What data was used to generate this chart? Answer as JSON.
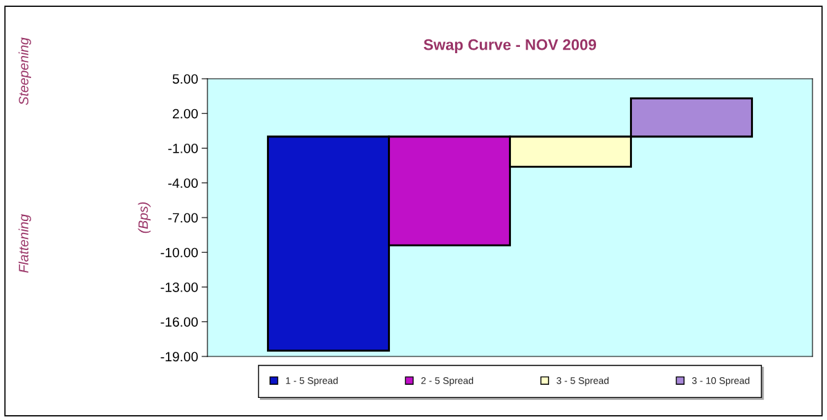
{
  "chart_data": {
    "type": "bar",
    "title": "Swap Curve - NOV 2009",
    "ylabel": "(Bps)",
    "annotations": [
      "Steepening",
      "Flattening"
    ],
    "categories": [
      null
    ],
    "series": [
      {
        "name": "1 - 5 Spread",
        "color": "#0a14c8",
        "values": [
          -18.5
        ]
      },
      {
        "name": "2 - 5 Spread",
        "color": "#c010c8",
        "values": [
          -9.4
        ]
      },
      {
        "name": "3 - 5 Spread",
        "color": "#ffffc8",
        "values": [
          -2.6
        ]
      },
      {
        "name": "3 - 10 Spread",
        "color": "#a888d8",
        "values": [
          3.3
        ]
      }
    ],
    "ylim": [
      -19,
      5
    ],
    "yticks": [
      {
        "value": 5,
        "label": "5.00"
      },
      {
        "value": 2,
        "label": "2.00"
      },
      {
        "value": -1,
        "label": "-1.00"
      },
      {
        "value": -4,
        "label": "-4.00"
      },
      {
        "value": -7,
        "label": "-7.00"
      },
      {
        "value": -10,
        "label": "-10.00"
      },
      {
        "value": -13,
        "label": "-13.00"
      },
      {
        "value": -16,
        "label": "-16.00"
      },
      {
        "value": -19,
        "label": "-19.00"
      }
    ],
    "legend": "bottom",
    "grid": false
  }
}
